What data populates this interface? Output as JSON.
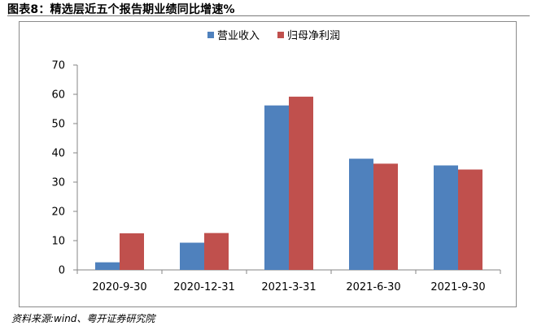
{
  "title": "图表8：精选层近五个报告期业绩同比增速%",
  "source": "资料来源:wind、粤开证券研究院",
  "colors": {
    "series": [
      "#4f81bd",
      "#c0504d"
    ],
    "axis": "#868686",
    "text": "#000000"
  },
  "chart_data": {
    "type": "bar",
    "categories": [
      "2020-9-30",
      "2020-12-31",
      "2021-3-31",
      "2021-6-30",
      "2021-9-30"
    ],
    "series": [
      {
        "name": "营业收入",
        "values": [
          2.6,
          9.3,
          56.2,
          38.0,
          35.7
        ]
      },
      {
        "name": "归母净利润",
        "values": [
          12.5,
          12.6,
          59.2,
          36.3,
          34.3
        ]
      }
    ],
    "ylim": [
      0,
      70
    ],
    "yticks": [
      0,
      10,
      20,
      30,
      40,
      50,
      60,
      70
    ],
    "grid": false,
    "legend_position": "top-center"
  }
}
